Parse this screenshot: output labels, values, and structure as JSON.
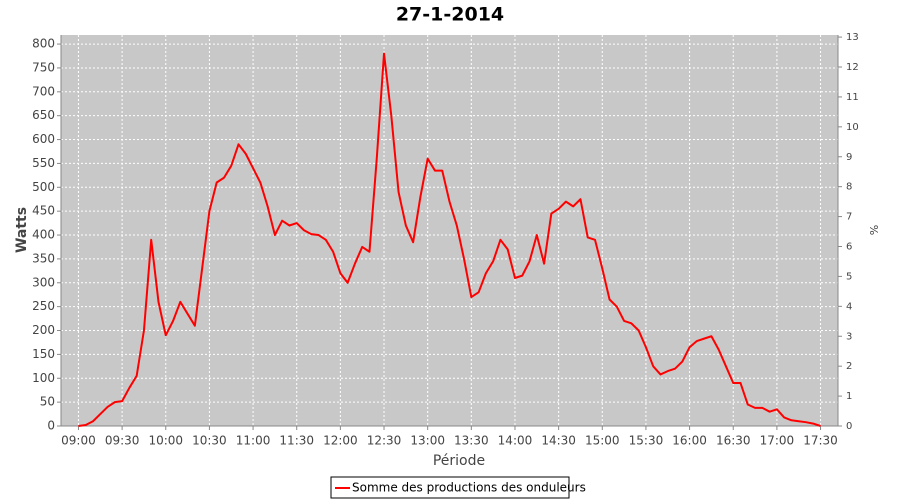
{
  "chart_data": {
    "type": "line",
    "title": "27-1-2014",
    "xlabel": "Période",
    "ylabel": "Watts",
    "y2label": "%",
    "x": [
      "09:00",
      "09:05",
      "09:10",
      "09:15",
      "09:20",
      "09:25",
      "09:30",
      "09:35",
      "09:40",
      "09:45",
      "09:50",
      "09:55",
      "10:00",
      "10:05",
      "10:10",
      "10:15",
      "10:20",
      "10:25",
      "10:30",
      "10:35",
      "10:40",
      "10:45",
      "10:50",
      "10:55",
      "11:00",
      "11:05",
      "11:10",
      "11:15",
      "11:20",
      "11:25",
      "11:30",
      "11:35",
      "11:40",
      "11:45",
      "11:50",
      "11:55",
      "12:00",
      "12:05",
      "12:10",
      "12:15",
      "12:20",
      "12:25",
      "12:30",
      "12:35",
      "12:40",
      "12:45",
      "12:50",
      "12:55",
      "13:00",
      "13:05",
      "13:10",
      "13:15",
      "13:20",
      "13:25",
      "13:30",
      "13:35",
      "13:40",
      "13:45",
      "13:50",
      "13:55",
      "14:00",
      "14:05",
      "14:10",
      "14:15",
      "14:20",
      "14:25",
      "14:30",
      "14:35",
      "14:40",
      "14:45",
      "14:50",
      "14:55",
      "15:00",
      "15:05",
      "15:10",
      "15:15",
      "15:20",
      "15:25",
      "15:30",
      "15:35",
      "15:40",
      "15:45",
      "15:50",
      "15:55",
      "16:00",
      "16:05",
      "16:10",
      "16:15",
      "16:20",
      "16:25",
      "16:30",
      "16:35",
      "16:40",
      "16:45",
      "16:50",
      "16:55",
      "17:00",
      "17:05",
      "17:10",
      "17:15",
      "17:20",
      "17:25",
      "17:30"
    ],
    "series": [
      {
        "name": "Somme des productions des onduleurs",
        "color": "#ff0000",
        "values": [
          0,
          2,
          10,
          25,
          40,
          50,
          52,
          80,
          105,
          200,
          390,
          260,
          190,
          220,
          260,
          235,
          210,
          330,
          450,
          510,
          520,
          545,
          590,
          570,
          540,
          510,
          460,
          400,
          430,
          420,
          425,
          410,
          402,
          400,
          390,
          365,
          320,
          300,
          340,
          375,
          365,
          560,
          780,
          650,
          490,
          420,
          385,
          480,
          560,
          535,
          535,
          470,
          420,
          350,
          270,
          280,
          320,
          345,
          390,
          370,
          310,
          315,
          345,
          400,
          340,
          445,
          455,
          470,
          460,
          475,
          395,
          390,
          330,
          265,
          250,
          220,
          215,
          200,
          165,
          125,
          108,
          115,
          120,
          135,
          165,
          178,
          183,
          188,
          160,
          125,
          90,
          90,
          45,
          38,
          38,
          30,
          35,
          18,
          12,
          10,
          8,
          5,
          0
        ]
      }
    ],
    "xlim": [
      "08:48",
      "17:42"
    ],
    "xticks": [
      "09:00",
      "09:30",
      "10:00",
      "10:30",
      "11:00",
      "11:30",
      "12:00",
      "12:30",
      "13:00",
      "13:30",
      "14:00",
      "14:30",
      "15:00",
      "15:30",
      "16:00",
      "16:30",
      "17:00",
      "17:30"
    ],
    "ylim": [
      0,
      819
    ],
    "yticks": [
      0,
      50,
      100,
      150,
      200,
      250,
      300,
      350,
      400,
      450,
      500,
      550,
      600,
      650,
      700,
      750,
      800
    ],
    "y2lim": [
      0,
      13.07
    ],
    "y2ticks": [
      0,
      1,
      2,
      3,
      4,
      5,
      6,
      7,
      8,
      9,
      10,
      11,
      12,
      13
    ],
    "grid": true,
    "legend": "bottom"
  }
}
